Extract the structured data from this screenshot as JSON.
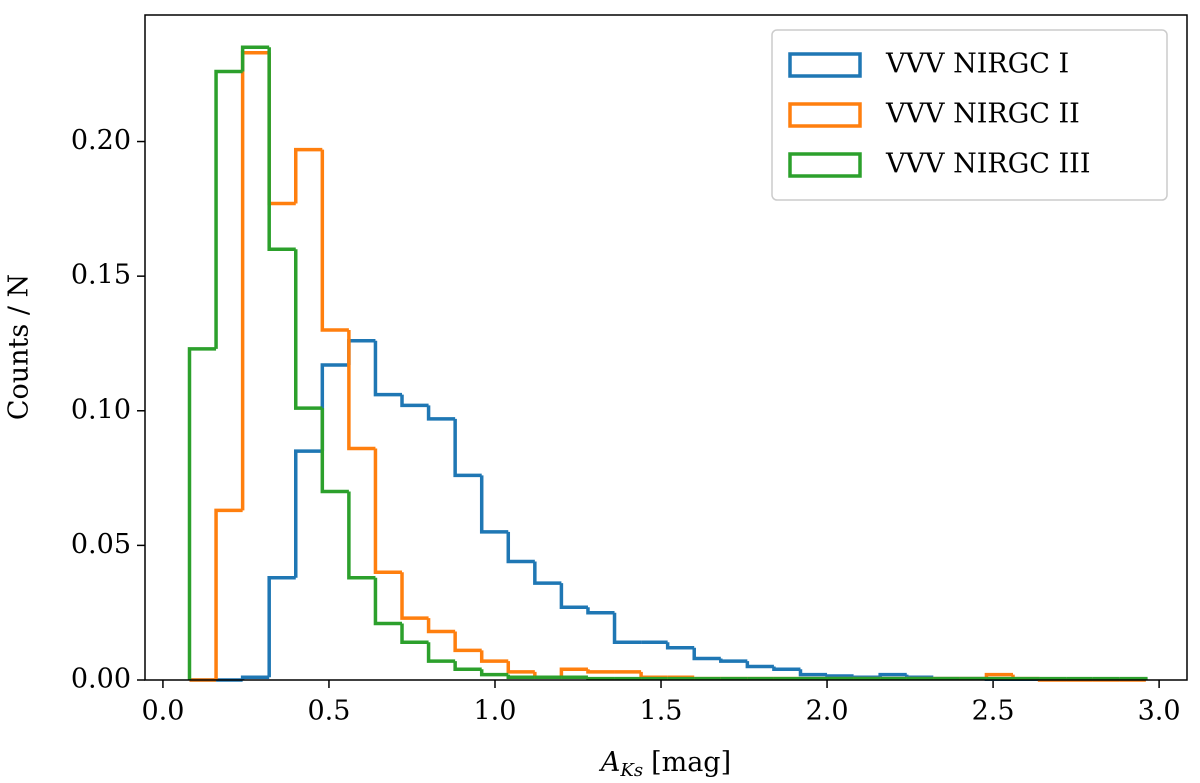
{
  "chart_data": {
    "type": "histogram",
    "xlabel": {
      "symbol": "A",
      "subscript": "Ks",
      "unit": "[mag]"
    },
    "ylabel": "Counts / N",
    "bins": [
      0.08,
      0.16,
      0.24,
      0.32,
      0.4,
      0.48,
      0.56,
      0.64,
      0.72,
      0.8,
      0.88,
      0.96,
      1.04,
      1.12,
      1.2,
      1.28,
      1.36,
      1.44,
      1.52,
      1.6,
      1.68,
      1.76,
      1.84,
      1.92,
      2.0,
      2.08,
      2.16,
      2.24,
      2.32,
      2.4,
      2.48,
      2.56,
      2.64,
      2.72,
      2.8,
      2.88,
      2.96
    ],
    "series": [
      {
        "name": "VVV NIRGC I",
        "color": "#1f77b4",
        "values": [
          0,
          0,
          0.001,
          0.038,
          0.085,
          0.117,
          0.126,
          0.106,
          0.102,
          0.097,
          0.076,
          0.055,
          0.044,
          0.036,
          0.027,
          0.025,
          0.014,
          0.014,
          0.012,
          0.008,
          0.007,
          0.005,
          0.004,
          0.002,
          0.0015,
          0.001,
          0.002,
          0.001,
          0.0005,
          0.0005,
          0.0003,
          0.0003,
          0.0003,
          0.0002,
          0.0002,
          0.0002
        ]
      },
      {
        "name": "VVV NIRGC II",
        "color": "#ff7f0e",
        "values": [
          0,
          0.063,
          0.233,
          0.177,
          0.197,
          0.13,
          0.086,
          0.04,
          0.023,
          0.018,
          0.011,
          0.007,
          0.003,
          0.001,
          0.004,
          0.003,
          0.003,
          0.001,
          0.001,
          0.0005,
          0.0005,
          0.0005,
          0.0005,
          0.0005,
          0.0005,
          0.0005,
          0.0005,
          0.0005,
          0.0005,
          0.0005,
          0.002,
          0.0005,
          0,
          0,
          0,
          0
        ]
      },
      {
        "name": "VVV NIRGC III",
        "color": "#2ca02c",
        "values": [
          0.123,
          0.226,
          0.235,
          0.16,
          0.101,
          0.07,
          0.038,
          0.021,
          0.014,
          0.007,
          0.004,
          0.002,
          0.001,
          0.001,
          0.001,
          0.0005,
          0.0005,
          0.0005,
          0.0005,
          0.0005,
          0.0005,
          0.0005,
          0.0005,
          0.0005,
          0.0005,
          0.0005,
          0.0005,
          0.0005,
          0.0005,
          0.0005,
          0.0005,
          0.0005,
          0.0005,
          0.0005,
          0.0005,
          0.0005
        ]
      }
    ],
    "xlim": [
      -0.054,
      3.084
    ],
    "ylim": [
      0,
      0.247
    ],
    "xticks": [
      {
        "value": 0,
        "label": "0.0"
      },
      0.5,
      {
        "value": 1,
        "label": "1.0"
      },
      1.5,
      {
        "value": 2,
        "label": "2.0"
      },
      2.5,
      {
        "value": 3,
        "label": "3.0"
      }
    ],
    "yticks": [
      {
        "value": 0,
        "label": "0.00"
      },
      {
        "value": 0.05,
        "label": "0.05"
      },
      {
        "value": 0.1,
        "label": "0.10"
      },
      {
        "value": 0.15,
        "label": "0.15"
      },
      {
        "value": 0.2,
        "label": "0.20"
      }
    ],
    "legend": "upper right"
  }
}
